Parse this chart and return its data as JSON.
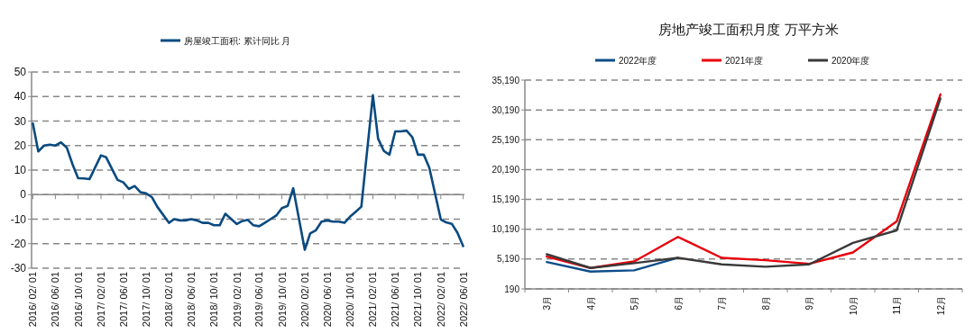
{
  "chart_data": [
    {
      "type": "line",
      "x": [
        "2016-02",
        "2016-03",
        "2016-04",
        "2016-05",
        "2016-06",
        "2016-07",
        "2016-08",
        "2016-09",
        "2016-10",
        "2016-11",
        "2016-12",
        "2017-02",
        "2017-03",
        "2017-04",
        "2017-05",
        "2017-06",
        "2017-07",
        "2017-08",
        "2017-09",
        "2017-10",
        "2017-11",
        "2017-12",
        "2018-02",
        "2018-03",
        "2018-04",
        "2018-05",
        "2018-06",
        "2018-07",
        "2018-08",
        "2018-09",
        "2018-10",
        "2018-11",
        "2018-12",
        "2019-02",
        "2019-03",
        "2019-04",
        "2019-05",
        "2019-06",
        "2019-07",
        "2019-08",
        "2019-09",
        "2019-10",
        "2019-11",
        "2019-12",
        "2020-02",
        "2020-03",
        "2020-04",
        "2020-05",
        "2020-06",
        "2020-07",
        "2020-08",
        "2020-09",
        "2020-10",
        "2020-11",
        "2020-12",
        "2021-02",
        "2021-03",
        "2021-04",
        "2021-05",
        "2021-06",
        "2021-07",
        "2021-08",
        "2021-09",
        "2021-10",
        "2021-11",
        "2021-12",
        "2022-02",
        "2022-03",
        "2022-04",
        "2022-05",
        "2022-06"
      ],
      "series": [
        {
          "name": "房屋竣工面积: 累计同比  月",
          "color": "#0a4a80",
          "values": [
            29,
            17.6,
            20,
            20.4,
            20,
            21.3,
            19.2,
            12.4,
            6.7,
            6.6,
            6.3,
            16,
            15.2,
            10.5,
            6,
            5,
            2.3,
            3.5,
            1,
            0.5,
            -1,
            -5,
            -11.5,
            -10,
            -10.5,
            -10.5,
            -10,
            -10.5,
            -11.5,
            -11.5,
            -12.5,
            -12.5,
            -7.8,
            -12,
            -10.8,
            -10.3,
            -12.5,
            -12.9,
            -11.5,
            -10,
            -8.5,
            -5.5,
            -4.6,
            2.6,
            -22.5,
            -15.8,
            -14.5,
            -11,
            -10.5,
            -11,
            -11,
            -11.5,
            -9,
            -7,
            -4.9,
            40.5,
            22.8,
            17.8,
            16.3,
            25.8,
            25.8,
            26.1,
            23.4,
            16.3,
            16.3,
            11,
            -10.1,
            -11.3,
            -11.9,
            -15.5,
            -21
          ]
        }
      ],
      "xlim": [
        "2016-01-25",
        "2022-06-08"
      ],
      "xticks": [
        {
          "value": "2016-02",
          "label": "2016/ 02/ 01"
        },
        {
          "value": "2016-06",
          "label": "2016/ 06/ 01"
        },
        {
          "value": "2016-10",
          "label": "2016/ 10/ 01"
        },
        {
          "value": "2017-02",
          "label": "2017/ 02/ 01"
        },
        {
          "value": "2017-06",
          "label": "2017/ 06/ 01"
        },
        {
          "value": "2017-10",
          "label": "2017/ 10/ 01"
        },
        {
          "value": "2018-02",
          "label": "2018/ 02/ 01"
        },
        {
          "value": "2018-06",
          "label": "2018/ 06/ 01"
        },
        {
          "value": "2018-10",
          "label": "2018/ 10/ 01"
        },
        {
          "value": "2019-02",
          "label": "2019/ 02/ 01"
        },
        {
          "value": "2019-06",
          "label": "2019/ 06/ 01"
        },
        {
          "value": "2019-10",
          "label": "2019/ 10/ 01"
        },
        {
          "value": "2020-02",
          "label": "2020/ 02/ 01"
        },
        {
          "value": "2020-06",
          "label": "2020/ 06/ 01"
        },
        {
          "value": "2020-10",
          "label": "2020/ 10/ 01"
        },
        {
          "value": "2021-02",
          "label": "2021/ 02/ 01"
        },
        {
          "value": "2021-06",
          "label": "2021/ 06/ 01"
        },
        {
          "value": "2021-10",
          "label": "2021/ 10/ 01"
        },
        {
          "value": "2022-02",
          "label": "2022/ 02/ 01"
        },
        {
          "value": "2022-06",
          "label": "2022/ 06/ 01"
        }
      ],
      "ylim": [
        -30,
        50
      ],
      "yticks": [
        -30,
        -20,
        -10,
        0,
        10,
        20,
        30,
        40,
        50
      ],
      "grid": "y",
      "legend": "top",
      "line_style": "solid"
    },
    {
      "type": "line",
      "title": "房地产竣工面积月度    万平方米",
      "categories": [
        "3月",
        "4月",
        "5月",
        "6月",
        "7月",
        "8月",
        "9月",
        "10月",
        "11月",
        "12月"
      ],
      "series": [
        {
          "name": "2022年度",
          "color": "#0c4d8a",
          "values": [
            4700,
            3100,
            3300,
            5400,
            null,
            null,
            null,
            null,
            null,
            null
          ]
        },
        {
          "name": "2021年度",
          "color": "#e8000b",
          "values": [
            5600,
            3700,
            4800,
            8900,
            5400,
            5000,
            4400,
            6300,
            11500,
            32800
          ]
        },
        {
          "name": "2020年度",
          "color": "#3a3a3a",
          "values": [
            6000,
            3700,
            4500,
            5400,
            4300,
            3900,
            4300,
            7900,
            10000,
            32100
          ]
        }
      ],
      "ylim": [
        190,
        35190
      ],
      "yticks": [
        190,
        {
          "value": 5190,
          "label": "5,190"
        },
        {
          "value": 10190,
          "label": "10,190"
        },
        {
          "value": 15190,
          "label": "15,190"
        },
        {
          "value": 20190,
          "label": "20,190"
        },
        {
          "value": 25190,
          "label": "25,190"
        },
        {
          "value": 30190,
          "label": "30,190"
        },
        {
          "value": 35190,
          "label": "35,190"
        }
      ],
      "grid": "y",
      "legend": "top",
      "line_style": "solid"
    }
  ]
}
